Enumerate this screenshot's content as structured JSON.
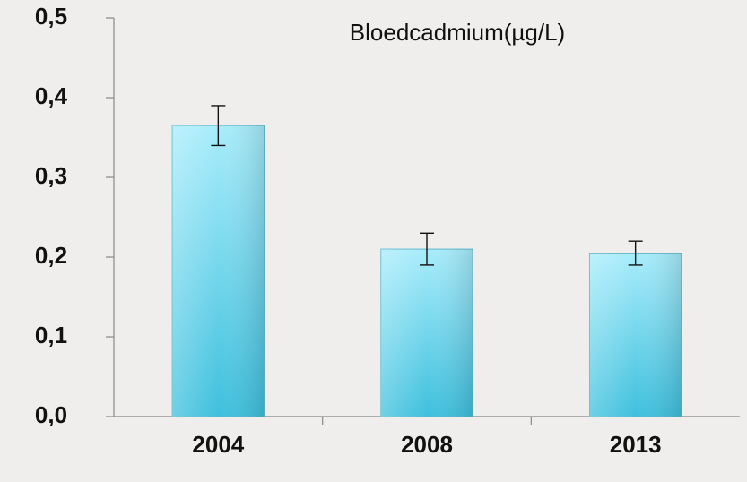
{
  "chart_data": {
    "type": "bar",
    "title": "Bloedcadmium(µg/L)",
    "categories": [
      "2004",
      "2008",
      "2013"
    ],
    "values": [
      0.365,
      0.21,
      0.205
    ],
    "errors": [
      0.025,
      0.02,
      0.015
    ],
    "color": "#7fdaf0",
    "ylim": [
      0,
      0.5
    ],
    "yticks": [
      {
        "value": 0,
        "label": "0,0"
      },
      {
        "value": 0.1,
        "label": "0,1"
      },
      {
        "value": 0.2,
        "label": "0,2"
      },
      {
        "value": 0.3,
        "label": "0,3"
      },
      {
        "value": 0.4,
        "label": "0,4"
      },
      {
        "value": 0.5,
        "label": "0,5"
      }
    ],
    "grid": false
  }
}
